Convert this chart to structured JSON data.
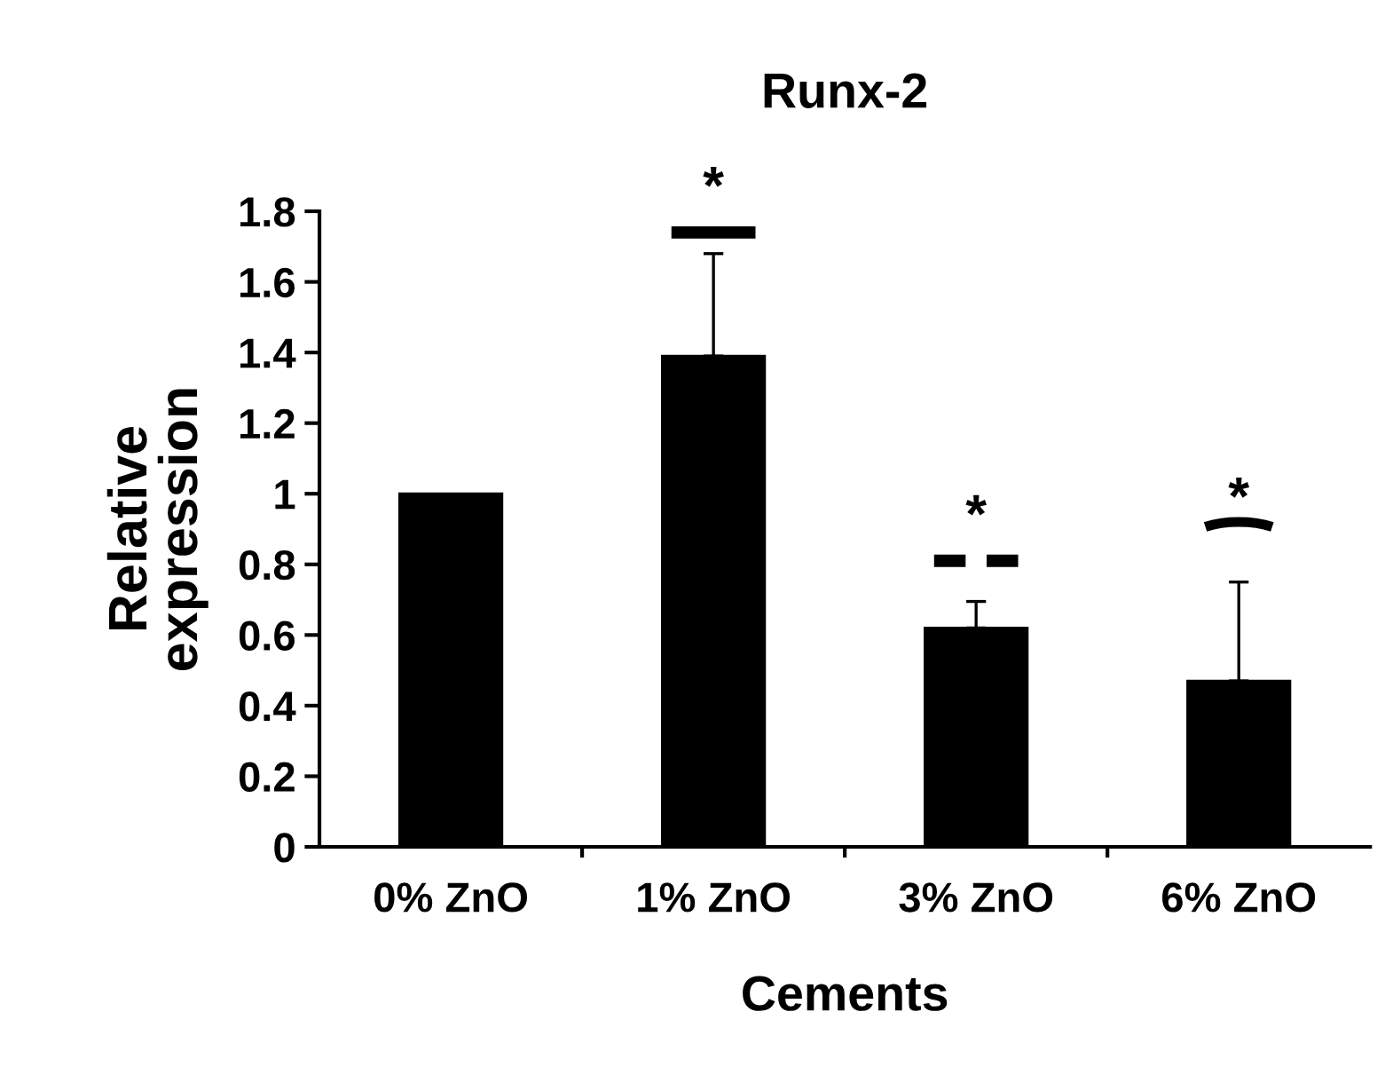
{
  "chart_data": {
    "type": "bar",
    "title": "Runx-2",
    "xlabel": "Cements",
    "ylabel": "Relative\nexpression",
    "categories": [
      "0% ZnO",
      "1% ZnO",
      "3% ZnO",
      "6% ZnO"
    ],
    "values": [
      1.0,
      1.39,
      0.62,
      0.47
    ],
    "errors": [
      null,
      [
        1.39,
        1.68
      ],
      [
        0.62,
        0.695
      ],
      [
        0.47,
        0.75
      ]
    ],
    "color": "#000000",
    "ylim": [
      0,
      1.8
    ],
    "yticks": [
      0,
      0.2,
      0.4,
      0.6,
      0.8,
      {
        "value": 1,
        "label": "1"
      },
      1.2,
      1.4,
      1.6,
      1.8
    ],
    "grid": false,
    "legend": false,
    "annotations": [
      "*",
      "*",
      "*"
    ]
  }
}
